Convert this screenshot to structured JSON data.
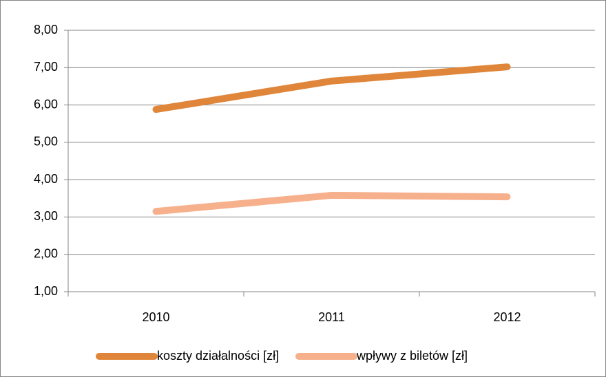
{
  "chart_data": {
    "type": "line",
    "categories": [
      "2010",
      "2011",
      "2012"
    ],
    "series": [
      {
        "name": "koszty działalności [zł]",
        "color": "#e0863a",
        "values": [
          5.88,
          6.64,
          7.02
        ]
      },
      {
        "name": "wpływy z biletów [zł]",
        "color": "#f6b08c",
        "values": [
          3.15,
          3.58,
          3.54
        ]
      }
    ],
    "ylim": [
      1,
      8
    ],
    "yticks": [
      {
        "value": 1,
        "label": "1,00"
      },
      {
        "value": 2,
        "label": "2,00"
      },
      {
        "value": 3,
        "label": "3,00"
      },
      {
        "value": 4,
        "label": "4,00"
      },
      {
        "value": 5,
        "label": "5,00"
      },
      {
        "value": 6,
        "label": "6,00"
      },
      {
        "value": 7,
        "label": "7,00"
      },
      {
        "value": 8,
        "label": "8,00"
      }
    ],
    "grid": true,
    "legend": "bottom"
  }
}
